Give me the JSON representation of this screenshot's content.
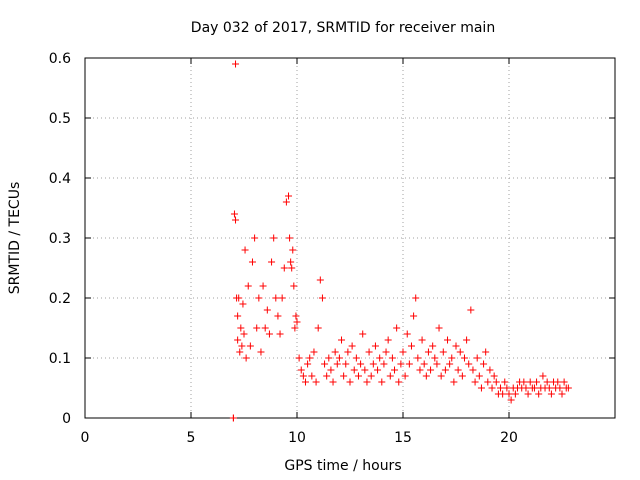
{
  "chart_data": {
    "type": "scatter",
    "title": "Day 032 of 2017, SRMTID for receiver main",
    "xlabel": "GPS time / hours",
    "ylabel": "SRMTID / TECUs",
    "xlim": [
      0,
      25
    ],
    "ylim": [
      0,
      0.6
    ],
    "xticks": [
      0,
      5,
      10,
      15,
      20
    ],
    "xtick_labels": [
      "0",
      "5",
      "10",
      "15",
      "20"
    ],
    "yticks": [
      0,
      0.1,
      0.2,
      0.3,
      0.4,
      0.5,
      0.6
    ],
    "ytick_labels": [
      "0",
      "0.1",
      "0.2",
      "0.3",
      "0.4",
      "0.5",
      "0.6"
    ],
    "grid": true,
    "series": [
      {
        "name": "SRMTID",
        "color": "#ff0000",
        "marker": "plus",
        "x": [
          7.0,
          7.0,
          7.05,
          7.1,
          7.1,
          7.15,
          7.2,
          7.2,
          7.25,
          7.3,
          7.35,
          7.4,
          7.45,
          7.5,
          7.55,
          7.6,
          7.7,
          7.8,
          7.9,
          8.0,
          8.1,
          8.2,
          8.3,
          8.4,
          8.5,
          8.6,
          8.7,
          8.8,
          8.9,
          9.0,
          9.1,
          9.2,
          9.3,
          9.4,
          9.5,
          9.6,
          9.65,
          9.7,
          9.75,
          9.8,
          9.85,
          9.9,
          9.95,
          10.0,
          10.1,
          10.2,
          10.3,
          10.4,
          10.5,
          10.6,
          10.7,
          10.8,
          10.9,
          11.0,
          11.1,
          11.2,
          11.3,
          11.4,
          11.5,
          11.6,
          11.7,
          11.8,
          11.9,
          12.0,
          12.1,
          12.2,
          12.3,
          12.4,
          12.5,
          12.6,
          12.7,
          12.8,
          12.9,
          13.0,
          13.1,
          13.2,
          13.3,
          13.4,
          13.5,
          13.6,
          13.7,
          13.8,
          13.9,
          14.0,
          14.1,
          14.2,
          14.3,
          14.4,
          14.5,
          14.6,
          14.7,
          14.8,
          14.9,
          15.0,
          15.1,
          15.2,
          15.3,
          15.4,
          15.5,
          15.6,
          15.7,
          15.8,
          15.9,
          16.0,
          16.1,
          16.2,
          16.3,
          16.4,
          16.5,
          16.6,
          16.7,
          16.8,
          16.9,
          17.0,
          17.1,
          17.2,
          17.3,
          17.4,
          17.5,
          17.6,
          17.7,
          17.8,
          17.9,
          18.0,
          18.1,
          18.2,
          18.3,
          18.4,
          18.5,
          18.6,
          18.7,
          18.8,
          18.9,
          19.0,
          19.1,
          19.2,
          19.3,
          19.4,
          19.5,
          19.6,
          19.7,
          19.8,
          19.9,
          20.0,
          20.1,
          20.2,
          20.3,
          20.4,
          20.5,
          20.6,
          20.7,
          20.8,
          20.9,
          21.0,
          21.1,
          21.2,
          21.3,
          21.4,
          21.5,
          21.6,
          21.7,
          21.8,
          21.9,
          22.0,
          22.1,
          22.2,
          22.3,
          22.4,
          22.5,
          22.6,
          22.7,
          22.8
        ],
        "y": [
          0.0,
          0.0,
          0.34,
          0.59,
          0.33,
          0.2,
          0.13,
          0.17,
          0.2,
          0.11,
          0.15,
          0.12,
          0.19,
          0.14,
          0.28,
          0.1,
          0.22,
          0.12,
          0.26,
          0.3,
          0.15,
          0.2,
          0.11,
          0.22,
          0.15,
          0.18,
          0.14,
          0.26,
          0.3,
          0.2,
          0.17,
          0.14,
          0.2,
          0.25,
          0.36,
          0.37,
          0.3,
          0.26,
          0.25,
          0.28,
          0.22,
          0.15,
          0.17,
          0.16,
          0.1,
          0.08,
          0.07,
          0.06,
          0.09,
          0.1,
          0.07,
          0.11,
          0.06,
          0.15,
          0.23,
          0.2,
          0.09,
          0.07,
          0.1,
          0.08,
          0.06,
          0.11,
          0.09,
          0.1,
          0.13,
          0.07,
          0.09,
          0.11,
          0.06,
          0.12,
          0.08,
          0.1,
          0.07,
          0.09,
          0.14,
          0.08,
          0.06,
          0.11,
          0.07,
          0.09,
          0.12,
          0.08,
          0.1,
          0.06,
          0.09,
          0.11,
          0.13,
          0.07,
          0.1,
          0.08,
          0.15,
          0.06,
          0.09,
          0.11,
          0.07,
          0.14,
          0.09,
          0.12,
          0.17,
          0.2,
          0.1,
          0.08,
          0.13,
          0.09,
          0.07,
          0.11,
          0.08,
          0.12,
          0.1,
          0.09,
          0.15,
          0.07,
          0.11,
          0.08,
          0.13,
          0.09,
          0.1,
          0.06,
          0.12,
          0.08,
          0.11,
          0.07,
          0.1,
          0.13,
          0.09,
          0.18,
          0.08,
          0.06,
          0.1,
          0.07,
          0.05,
          0.09,
          0.11,
          0.06,
          0.08,
          0.05,
          0.07,
          0.06,
          0.04,
          0.05,
          0.04,
          0.06,
          0.05,
          0.04,
          0.03,
          0.05,
          0.04,
          0.05,
          0.06,
          0.05,
          0.06,
          0.05,
          0.04,
          0.06,
          0.05,
          0.05,
          0.06,
          0.04,
          0.05,
          0.07,
          0.05,
          0.06,
          0.05,
          0.04,
          0.06,
          0.05,
          0.06,
          0.05,
          0.04,
          0.06,
          0.05,
          0.05
        ]
      }
    ]
  }
}
